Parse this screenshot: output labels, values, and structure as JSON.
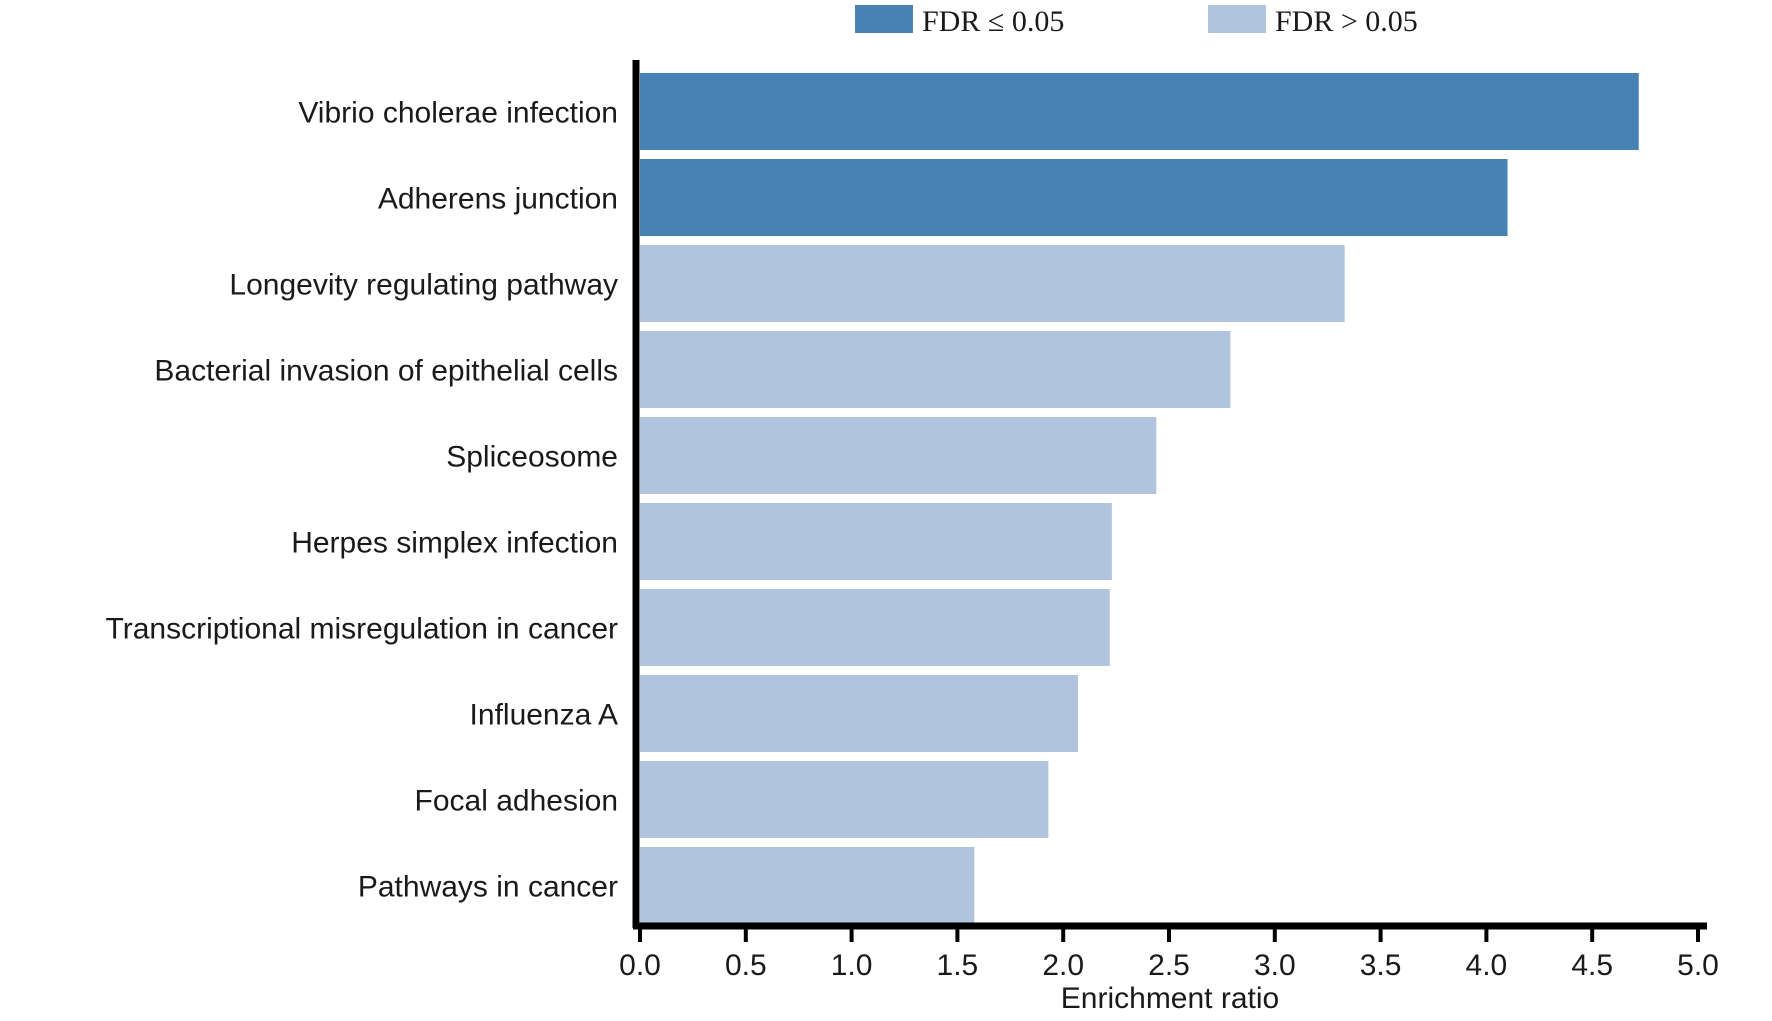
{
  "chart_data": {
    "type": "bar",
    "orientation": "horizontal",
    "categories": [
      "Vibrio cholerae infection",
      "Adherens junction",
      "Longevity regulating pathway",
      "Bacterial invasion of epithelial cells",
      "Spliceosome",
      "Herpes simplex infection",
      "Transcriptional misregulation in cancer",
      "Influenza A",
      "Focal adhesion",
      "Pathways in cancer"
    ],
    "values": [
      4.72,
      4.1,
      3.33,
      2.79,
      2.44,
      2.23,
      2.22,
      2.07,
      1.93,
      1.58
    ],
    "significant": [
      true,
      true,
      false,
      false,
      false,
      false,
      false,
      false,
      false,
      false
    ],
    "xlabel": "Enrichment ratio",
    "ylabel": "",
    "xlim": [
      0,
      5
    ],
    "xticks": [
      "0.0",
      "0.5",
      "1.0",
      "1.5",
      "2.0",
      "2.5",
      "3.0",
      "3.5",
      "4.0",
      "4.5",
      "5.0"
    ],
    "grid": false,
    "legend_position": "top",
    "legend": [
      {
        "label": "FDR ≤ 0.05",
        "color": "#4682b4"
      },
      {
        "label": "FDR > 0.05",
        "color": "#b0c4de"
      }
    ],
    "colors": {
      "significant": "#4682b4",
      "not_significant": "#b0c4de",
      "axis": "#000000"
    }
  }
}
